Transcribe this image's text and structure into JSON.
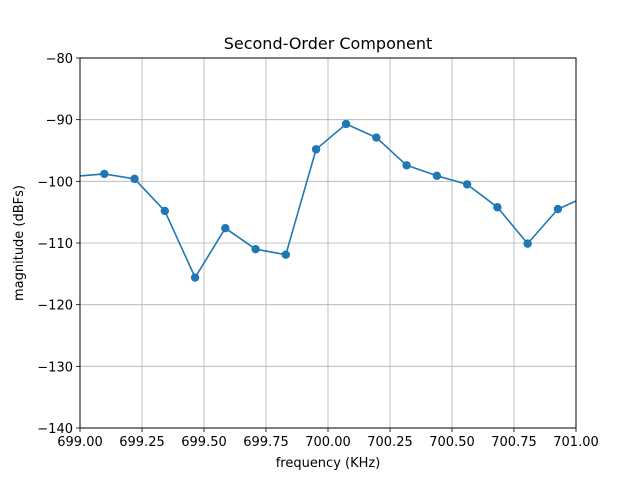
{
  "chart_data": {
    "type": "line",
    "title": "Second-Order Component",
    "xlabel": "frequency (KHz)",
    "ylabel": "magnitude (dBFs)",
    "xlim": [
      699.0,
      701.0
    ],
    "ylim": [
      -140,
      -80
    ],
    "grid": true,
    "x_ticks": [
      699.0,
      699.25,
      699.5,
      699.75,
      700.0,
      700.25,
      700.5,
      700.75,
      701.0
    ],
    "x_tick_labels": [
      "699.00",
      "699.25",
      "699.50",
      "699.75",
      "700.00",
      "700.25",
      "700.50",
      "700.75",
      "701.00"
    ],
    "y_ticks": [
      -140,
      -130,
      -120,
      -110,
      -100,
      -90,
      -80
    ],
    "y_tick_labels": [
      "−140",
      "−130",
      "−120",
      "−110",
      "−100",
      "−90",
      "−80"
    ],
    "series": [
      {
        "color": "#1f77b4",
        "x": [
          698.977,
          699.098,
          699.22,
          699.342,
          699.464,
          699.586,
          699.708,
          699.83,
          699.952,
          700.073,
          700.195,
          700.317,
          700.439,
          700.561,
          700.683,
          700.805,
          700.927,
          701.049
        ],
        "y": [
          -99.2,
          -98.8,
          -99.6,
          -104.8,
          -115.6,
          -107.6,
          -111.0,
          -111.9,
          -94.8,
          -90.7,
          -92.9,
          -97.4,
          -99.1,
          -100.5,
          -104.2,
          -110.1,
          -104.5,
          -102.3
        ]
      }
    ]
  }
}
